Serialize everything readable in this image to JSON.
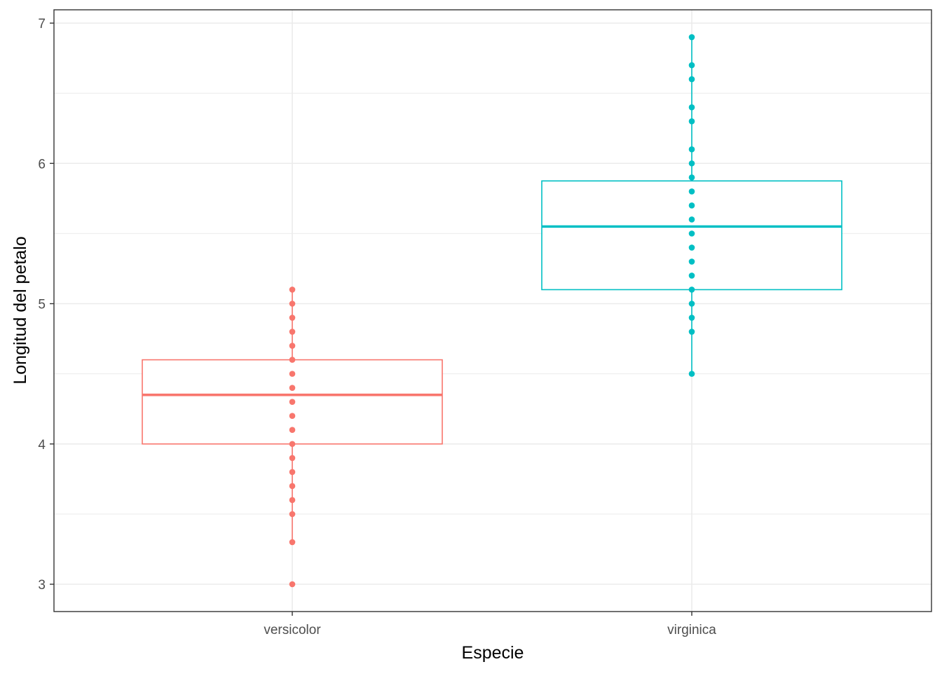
{
  "chart_data": {
    "type": "boxplot",
    "title": "",
    "xlabel": "Especie",
    "ylabel": "Longitud del petalo",
    "categories": [
      "versicolor",
      "virginica"
    ],
    "ylim": [
      2.8,
      7.1
    ],
    "y_ticks": [
      3,
      4,
      5,
      6,
      7
    ],
    "y_tick_labels": [
      "3",
      "4",
      "5",
      "6",
      "7"
    ],
    "grid": true,
    "legend": "none",
    "series": [
      {
        "category": "versicolor",
        "color": "#F8766D",
        "box": {
          "q1": 4.0,
          "median": 4.35,
          "q3": 4.6,
          "whisker_low": 3.3,
          "whisker_high": 5.1
        },
        "points": [
          3.0,
          3.3,
          3.5,
          3.6,
          3.7,
          3.8,
          3.9,
          4.0,
          4.1,
          4.2,
          4.3,
          4.4,
          4.5,
          4.6,
          4.7,
          4.8,
          4.9,
          5.0,
          5.1
        ],
        "outliers": [
          3.0
        ]
      },
      {
        "category": "virginica",
        "color": "#00BFC4",
        "box": {
          "q1": 5.1,
          "median": 5.55,
          "q3": 5.875,
          "whisker_low": 4.5,
          "whisker_high": 6.9
        },
        "points": [
          4.5,
          4.8,
          4.9,
          5.0,
          5.1,
          5.2,
          5.3,
          5.4,
          5.5,
          5.6,
          5.7,
          5.8,
          5.9,
          6.0,
          6.1,
          6.3,
          6.4,
          6.6,
          6.7,
          6.9
        ],
        "outliers": []
      }
    ]
  }
}
